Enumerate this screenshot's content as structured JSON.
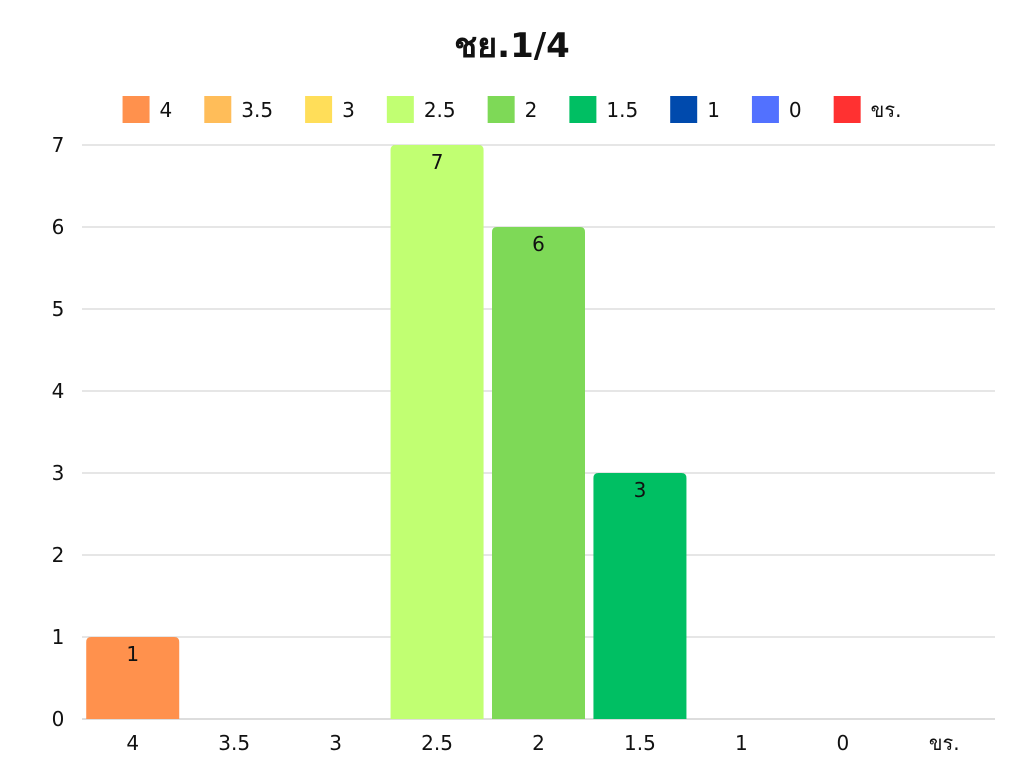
{
  "chart_data": {
    "type": "bar",
    "title": "ชย.1/4",
    "xlabel": "",
    "ylabel": "",
    "categories": [
      "4",
      "3.5",
      "3",
      "2.5",
      "2",
      "1.5",
      "1",
      "0",
      "ขร."
    ],
    "values": [
      1,
      0,
      0,
      7,
      6,
      3,
      0,
      0,
      0
    ],
    "colors": [
      "#FF914D",
      "#FFBD59",
      "#FFDE59",
      "#C1FF72",
      "#7ED957",
      "#00BF63",
      "#004AAD",
      "#5271FF",
      "#FF3131"
    ],
    "legend": {
      "position": "top",
      "entries": [
        "4",
        "3.5",
        "3",
        "2.5",
        "2",
        "1.5",
        "1",
        "0",
        "ขร."
      ]
    },
    "ylim": [
      0,
      7
    ],
    "yticks": [
      "0",
      "1",
      "2",
      "3",
      "4",
      "5",
      "6",
      "7"
    ],
    "grid": true,
    "data_labels": true,
    "gridline_color": "#CCCCCC"
  }
}
